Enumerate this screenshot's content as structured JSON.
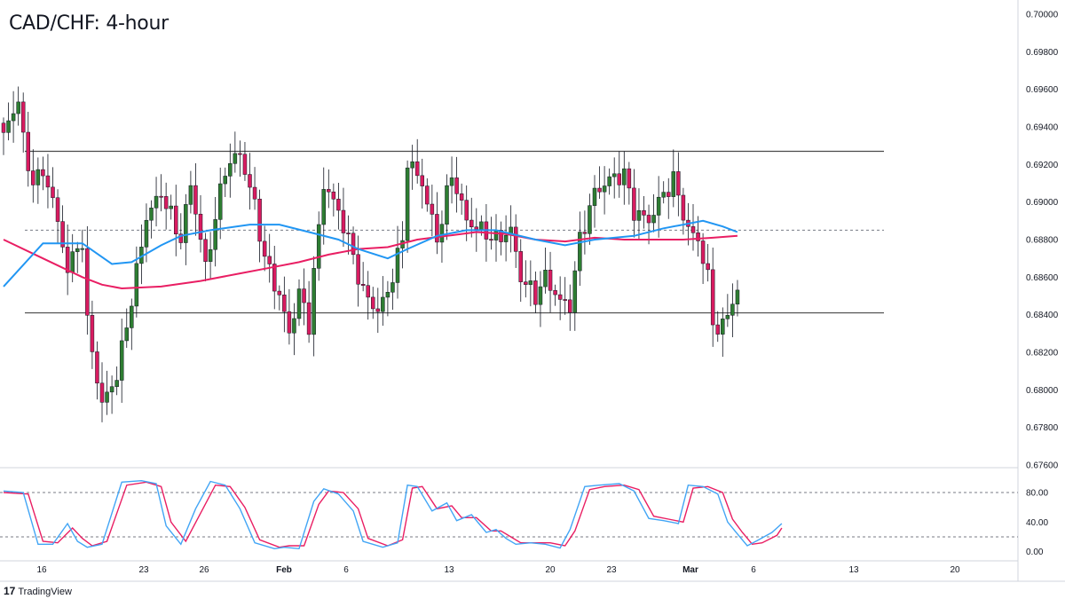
{
  "header": {
    "title": "CAD/CHF: 4-hour"
  },
  "branding": {
    "logo_mark": "17",
    "name": "TradingView"
  },
  "colors": {
    "bull": "#2e7d32",
    "bear": "#d81b60",
    "ma_fast": "#2196f3",
    "ma_slow": "#e91e63",
    "stoch_k": "#42a5f5",
    "stoch_d": "#e91e63",
    "level_line": "#4a4a4a",
    "dashed": "#787b86"
  },
  "chart_data": [
    {
      "type": "candlestick",
      "title": "CAD/CHF: 4-hour",
      "ylim": [
        0.676,
        0.7
      ],
      "y_ticks": [
        "0.70000",
        "0.69800",
        "0.69600",
        "0.69400",
        "0.69200",
        "0.69000",
        "0.68800",
        "0.68600",
        "0.68400",
        "0.68200",
        "0.68000",
        "0.67800",
        "0.67600"
      ],
      "x_ticks": [
        {
          "label": "16",
          "bold": false
        },
        {
          "label": "23",
          "bold": false
        },
        {
          "label": "26",
          "bold": false
        },
        {
          "label": "Feb",
          "bold": true
        },
        {
          "label": "6",
          "bold": false
        },
        {
          "label": "13",
          "bold": false
        },
        {
          "label": "20",
          "bold": false
        },
        {
          "label": "23",
          "bold": false
        },
        {
          "label": "Mar",
          "bold": true
        },
        {
          "label": "6",
          "bold": false
        },
        {
          "label": "13",
          "bold": false
        },
        {
          "label": "20",
          "bold": false
        }
      ],
      "horizontal_levels": {
        "resistance": 0.6927,
        "support": 0.6841,
        "dashed_reference": 0.6885
      },
      "close_path": [
        [
          0,
          0.6935
        ],
        [
          3,
          0.6955
        ],
        [
          5,
          0.6915
        ],
        [
          9,
          0.6912
        ],
        [
          13,
          0.6865
        ],
        [
          16,
          0.688
        ],
        [
          17,
          0.6835
        ],
        [
          20,
          0.6792
        ],
        [
          23,
          0.6808
        ],
        [
          26,
          0.6848
        ],
        [
          29,
          0.6892
        ],
        [
          32,
          0.6905
        ],
        [
          36,
          0.688
        ],
        [
          38,
          0.691
        ],
        [
          41,
          0.6865
        ],
        [
          45,
          0.6918
        ],
        [
          48,
          0.6926
        ],
        [
          51,
          0.6898
        ],
        [
          53,
          0.687
        ],
        [
          56,
          0.685
        ],
        [
          58,
          0.683
        ],
        [
          60,
          0.6852
        ],
        [
          62,
          0.6835
        ],
        [
          63,
          0.6862
        ],
        [
          65,
          0.691
        ],
        [
          68,
          0.6895
        ],
        [
          70,
          0.688
        ],
        [
          73,
          0.6852
        ],
        [
          76,
          0.6842
        ],
        [
          78,
          0.6852
        ],
        [
          81,
          0.688
        ],
        [
          82,
          0.6922
        ],
        [
          85,
          0.691
        ],
        [
          88,
          0.688
        ],
        [
          91,
          0.6915
        ],
        [
          94,
          0.689
        ],
        [
          97,
          0.6885
        ],
        [
          100,
          0.688
        ],
        [
          103,
          0.6885
        ],
        [
          105,
          0.686
        ],
        [
          108,
          0.685
        ],
        [
          110,
          0.686
        ],
        [
          113,
          0.6847
        ],
        [
          115,
          0.6845
        ],
        [
          117,
          0.688
        ],
        [
          120,
          0.6905
        ],
        [
          123,
          0.6912
        ],
        [
          126,
          0.6915
        ],
        [
          128,
          0.6895
        ],
        [
          131,
          0.689
        ],
        [
          133,
          0.69
        ],
        [
          136,
          0.6912
        ],
        [
          139,
          0.6885
        ],
        [
          141,
          0.688
        ],
        [
          143,
          0.686
        ],
        [
          144,
          0.6835
        ],
        [
          146,
          0.6833
        ],
        [
          148,
          0.6848
        ],
        [
          149,
          0.6852
        ]
      ],
      "ma_fast": [
        [
          0,
          0.6855
        ],
        [
          8,
          0.6878
        ],
        [
          16,
          0.6878
        ],
        [
          22,
          0.6867
        ],
        [
          26,
          0.6868
        ],
        [
          32,
          0.6877
        ],
        [
          36,
          0.6882
        ],
        [
          42,
          0.6885
        ],
        [
          50,
          0.6888
        ],
        [
          56,
          0.6888
        ],
        [
          62,
          0.6884
        ],
        [
          68,
          0.688
        ],
        [
          72,
          0.6875
        ],
        [
          78,
          0.687
        ],
        [
          82,
          0.6875
        ],
        [
          88,
          0.6882
        ],
        [
          94,
          0.6885
        ],
        [
          100,
          0.6885
        ],
        [
          108,
          0.688
        ],
        [
          114,
          0.6877
        ],
        [
          120,
          0.688
        ],
        [
          128,
          0.6882
        ],
        [
          134,
          0.6886
        ],
        [
          138,
          0.6888
        ],
        [
          142,
          0.689
        ],
        [
          146,
          0.6887
        ],
        [
          149,
          0.6884
        ]
      ],
      "ma_slow": [
        [
          0,
          0.688
        ],
        [
          8,
          0.687
        ],
        [
          16,
          0.686
        ],
        [
          20,
          0.6856
        ],
        [
          24,
          0.6854
        ],
        [
          32,
          0.6855
        ],
        [
          40,
          0.6858
        ],
        [
          48,
          0.6862
        ],
        [
          54,
          0.6865
        ],
        [
          60,
          0.6868
        ],
        [
          66,
          0.6872
        ],
        [
          72,
          0.6875
        ],
        [
          78,
          0.6876
        ],
        [
          84,
          0.688
        ],
        [
          90,
          0.6882
        ],
        [
          96,
          0.6884
        ],
        [
          102,
          0.6883
        ],
        [
          108,
          0.688
        ],
        [
          114,
          0.6879
        ],
        [
          120,
          0.6881
        ],
        [
          126,
          0.688
        ],
        [
          132,
          0.688
        ],
        [
          138,
          0.688
        ],
        [
          144,
          0.6881
        ],
        [
          149,
          0.6882
        ]
      ]
    },
    {
      "type": "line",
      "name": "stochastic",
      "ylim": [
        -10,
        110
      ],
      "y_ticks": [
        "80.00",
        "40.00",
        "0.00"
      ],
      "levels": [
        80,
        20
      ],
      "k_path": [
        [
          0,
          82
        ],
        [
          4,
          80
        ],
        [
          7,
          10
        ],
        [
          10,
          10
        ],
        [
          13,
          38
        ],
        [
          15,
          14
        ],
        [
          17,
          6
        ],
        [
          20,
          10
        ],
        [
          24,
          94
        ],
        [
          28,
          96
        ],
        [
          31,
          92
        ],
        [
          33,
          35
        ],
        [
          36,
          10
        ],
        [
          39,
          58
        ],
        [
          42,
          95
        ],
        [
          45,
          90
        ],
        [
          48,
          58
        ],
        [
          51,
          12
        ],
        [
          55,
          4
        ],
        [
          57,
          6
        ],
        [
          60,
          4
        ],
        [
          63,
          68
        ],
        [
          65,
          85
        ],
        [
          68,
          78
        ],
        [
          71,
          55
        ],
        [
          73,
          14
        ],
        [
          77,
          6
        ],
        [
          80,
          12
        ],
        [
          82,
          90
        ],
        [
          84,
          88
        ],
        [
          87,
          55
        ],
        [
          90,
          66
        ],
        [
          92,
          42
        ],
        [
          95,
          50
        ],
        [
          98,
          26
        ],
        [
          100,
          30
        ],
        [
          102,
          18
        ],
        [
          104,
          10
        ],
        [
          107,
          12
        ],
        [
          110,
          10
        ],
        [
          113,
          5
        ],
        [
          115,
          30
        ],
        [
          118,
          88
        ],
        [
          121,
          90
        ],
        [
          125,
          92
        ],
        [
          128,
          82
        ],
        [
          131,
          45
        ],
        [
          134,
          42
        ],
        [
          137,
          38
        ],
        [
          139,
          90
        ],
        [
          142,
          88
        ],
        [
          145,
          78
        ],
        [
          147,
          40
        ],
        [
          149,
          24
        ],
        [
          151,
          8
        ],
        [
          153,
          15
        ],
        [
          156,
          26
        ],
        [
          158,
          38
        ]
      ],
      "d_path": [
        [
          0,
          80
        ],
        [
          5,
          78
        ],
        [
          8,
          14
        ],
        [
          11,
          12
        ],
        [
          14,
          32
        ],
        [
          16,
          18
        ],
        [
          18,
          8
        ],
        [
          21,
          14
        ],
        [
          25,
          90
        ],
        [
          29,
          94
        ],
        [
          32,
          88
        ],
        [
          34,
          40
        ],
        [
          37,
          14
        ],
        [
          40,
          52
        ],
        [
          43,
          90
        ],
        [
          46,
          88
        ],
        [
          49,
          60
        ],
        [
          52,
          16
        ],
        [
          56,
          6
        ],
        [
          58,
          8
        ],
        [
          61,
          8
        ],
        [
          64,
          64
        ],
        [
          66,
          82
        ],
        [
          69,
          80
        ],
        [
          72,
          58
        ],
        [
          74,
          18
        ],
        [
          78,
          8
        ],
        [
          81,
          16
        ],
        [
          83,
          86
        ],
        [
          85,
          88
        ],
        [
          88,
          58
        ],
        [
          91,
          62
        ],
        [
          93,
          46
        ],
        [
          96,
          46
        ],
        [
          99,
          28
        ],
        [
          101,
          28
        ],
        [
          103,
          20
        ],
        [
          105,
          12
        ],
        [
          108,
          12
        ],
        [
          111,
          12
        ],
        [
          114,
          8
        ],
        [
          116,
          28
        ],
        [
          119,
          84
        ],
        [
          122,
          88
        ],
        [
          126,
          90
        ],
        [
          129,
          84
        ],
        [
          132,
          48
        ],
        [
          135,
          44
        ],
        [
          138,
          40
        ],
        [
          140,
          86
        ],
        [
          143,
          88
        ],
        [
          146,
          80
        ],
        [
          148,
          44
        ],
        [
          150,
          26
        ],
        [
          152,
          10
        ],
        [
          154,
          12
        ],
        [
          157,
          22
        ],
        [
          158,
          32
        ]
      ]
    }
  ]
}
